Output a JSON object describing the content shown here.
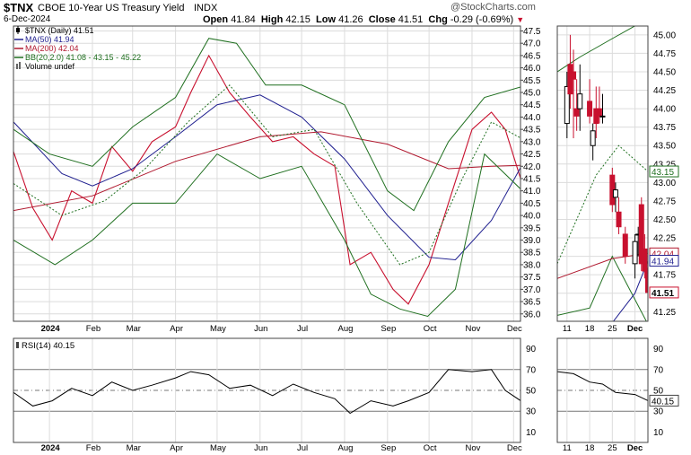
{
  "header": {
    "symbol": "$TNX",
    "name": "CBOE 10-Year US Treasury Yield",
    "exchange": "INDX",
    "watermark": "@StockCharts.com",
    "date": "6-Dec-2024",
    "ohlc": {
      "open_label": "Open",
      "open": "41.84",
      "high_label": "High",
      "high": "42.15",
      "low_label": "Low",
      "low": "41.26",
      "close_label": "Close",
      "close": "41.51",
      "chg_label": "Chg",
      "chg": "-0.29 (-0.69%)",
      "chg_arrow": "▼"
    }
  },
  "colors": {
    "ma50": "#1f1f8f",
    "ma200": "#b0182e",
    "bb": "#1f6f1f",
    "candle_down": "#c8102e",
    "candle_up": "#000000",
    "grid": "#dcdcdc",
    "rsi": "#000000"
  },
  "chart_data": [
    {
      "type": "line",
      "id": "price-main",
      "title": "$TNX CBOE 10-Year US Treasury Yield INDX",
      "legend": [
        {
          "label": "$TNX (Daily) 41.51",
          "swatch": "candle"
        },
        {
          "label": "MA(50) 41.94",
          "swatch": "ma50"
        },
        {
          "label": "MA(200) 42.04",
          "swatch": "ma200"
        },
        {
          "label": "BB(20,2.0) 41.08 - 43.15 - 45.22",
          "swatch": "bb"
        },
        {
          "label": "Volume undef",
          "swatch": "volume"
        }
      ],
      "legend_placement": "top-left",
      "y_axis_side": "right",
      "ylim": [
        35.7,
        47.7
      ],
      "y_ticks": [
        "47.5",
        "47.0",
        "46.5",
        "46.0",
        "45.5",
        "45.0",
        "44.5",
        "44.0",
        "43.5",
        "43.0",
        "42.5",
        "42.0",
        "41.5",
        "41.0",
        "40.5",
        "40.0",
        "39.5",
        "39.0",
        "38.5",
        "38.0",
        "37.5",
        "37.0",
        "36.5",
        "36.0"
      ],
      "x_tick_labels": [
        "2024",
        "Feb",
        "Mar",
        "Apr",
        "May",
        "Jun",
        "Jul",
        "Aug",
        "Sep",
        "Oct",
        "Nov",
        "Dec"
      ],
      "x_tick_months": [
        "2024-01",
        "2024-02",
        "2024-03",
        "2024-04",
        "2024-05",
        "2024-06",
        "2024-07",
        "2024-08",
        "2024-09",
        "2024-10",
        "2024-11",
        "2024-12"
      ],
      "x_range": [
        "2023-12-06",
        "2024-12-06"
      ],
      "series": [
        {
          "name": "$TNX (Daily)",
          "kind": "close",
          "x": [
            "2023-12-06",
            "2023-12-20",
            "2024-01-03",
            "2024-01-17",
            "2024-02-01",
            "2024-02-15",
            "2024-03-01",
            "2024-03-15",
            "2024-04-01",
            "2024-04-12",
            "2024-04-25",
            "2024-05-10",
            "2024-05-25",
            "2024-06-10",
            "2024-06-25",
            "2024-07-10",
            "2024-07-25",
            "2024-08-05",
            "2024-08-20",
            "2024-09-05",
            "2024-09-16",
            "2024-10-01",
            "2024-10-15",
            "2024-11-01",
            "2024-11-15",
            "2024-11-25",
            "2024-12-06"
          ],
          "values": [
            42.6,
            40.3,
            39.0,
            41.0,
            40.5,
            42.8,
            41.8,
            43.0,
            43.6,
            45.0,
            46.5,
            45.0,
            44.0,
            43.0,
            43.2,
            42.5,
            42.0,
            38.0,
            38.5,
            37.0,
            36.4,
            38.0,
            40.5,
            43.5,
            44.2,
            43.5,
            41.51
          ]
        },
        {
          "name": "MA(50)",
          "kind": "ma50",
          "x": [
            "2023-12-06",
            "2024-01-10",
            "2024-02-01",
            "2024-03-01",
            "2024-04-01",
            "2024-05-01",
            "2024-06-01",
            "2024-07-01",
            "2024-08-01",
            "2024-09-01",
            "2024-10-01",
            "2024-10-20",
            "2024-11-15",
            "2024-12-06"
          ],
          "values": [
            43.8,
            41.7,
            41.2,
            41.9,
            43.2,
            44.5,
            44.9,
            44.0,
            42.3,
            40.0,
            38.3,
            38.2,
            39.8,
            41.94
          ]
        },
        {
          "name": "MA(200)",
          "kind": "ma200",
          "x": [
            "2023-12-06",
            "2024-02-01",
            "2024-04-01",
            "2024-06-01",
            "2024-07-15",
            "2024-09-01",
            "2024-10-15",
            "2024-11-15",
            "2024-12-06"
          ],
          "values": [
            40.2,
            40.8,
            42.2,
            43.2,
            43.4,
            42.9,
            41.9,
            42.0,
            42.04
          ]
        },
        {
          "name": "BB upper",
          "kind": "bb",
          "x": [
            "2023-12-06",
            "2024-01-01",
            "2024-02-01",
            "2024-03-01",
            "2024-04-01",
            "2024-04-25",
            "2024-05-15",
            "2024-06-05",
            "2024-07-01",
            "2024-08-01",
            "2024-09-01",
            "2024-09-20",
            "2024-10-15",
            "2024-11-10",
            "2024-12-06"
          ],
          "values": [
            43.5,
            42.5,
            42.0,
            43.6,
            44.8,
            47.2,
            47.0,
            45.3,
            45.3,
            44.5,
            41.0,
            40.2,
            43.0,
            44.8,
            45.22
          ]
        },
        {
          "name": "BB lower",
          "kind": "bb",
          "x": [
            "2023-12-06",
            "2024-01-05",
            "2024-02-01",
            "2024-03-01",
            "2024-04-01",
            "2024-05-01",
            "2024-06-01",
            "2024-07-01",
            "2024-08-01",
            "2024-08-20",
            "2024-09-10",
            "2024-09-30",
            "2024-10-20",
            "2024-11-10",
            "2024-12-06"
          ],
          "values": [
            39.0,
            38.0,
            39.0,
            40.5,
            40.5,
            42.5,
            41.5,
            42.0,
            39.0,
            36.8,
            36.2,
            35.9,
            37.0,
            42.5,
            41.08
          ]
        },
        {
          "name": "BB middle",
          "kind": "bb-mid",
          "x": [
            "2023-12-06",
            "2024-01-10",
            "2024-02-10",
            "2024-03-10",
            "2024-04-10",
            "2024-05-10",
            "2024-06-10",
            "2024-07-10",
            "2024-08-10",
            "2024-09-10",
            "2024-10-01",
            "2024-10-25",
            "2024-11-15",
            "2024-12-06"
          ],
          "values": [
            41.3,
            40.0,
            40.6,
            41.9,
            43.8,
            45.3,
            43.2,
            43.5,
            40.5,
            38.0,
            38.5,
            41.5,
            43.8,
            43.15
          ]
        }
      ]
    },
    {
      "type": "line",
      "id": "price-inset",
      "y_axis_side": "right",
      "ylim": [
        41.12,
        45.12
      ],
      "y_ticks": [
        "45.00",
        "44.75",
        "44.50",
        "44.25",
        "44.00",
        "43.75",
        "43.50",
        "43.25",
        "43.00",
        "42.75",
        "42.50",
        "42.25",
        "42.00",
        "41.75",
        "41.50",
        "41.25"
      ],
      "x_tick_labels": [
        "11",
        "18",
        "25",
        "Dec"
      ],
      "x_range": [
        "2024-11-08",
        "2024-12-06"
      ],
      "value_flags": [
        {
          "label": "43.15",
          "value": 43.15,
          "kind": "bb"
        },
        {
          "label": "42.04",
          "value": 42.04,
          "kind": "ma200"
        },
        {
          "label": "41.94",
          "value": 41.94,
          "kind": "ma50"
        },
        {
          "label": "41.51",
          "value": 41.51,
          "kind": "close"
        }
      ],
      "candles": [
        {
          "date": "2024-11-11",
          "open": 43.8,
          "high": 44.5,
          "low": 43.6,
          "close": 44.3
        },
        {
          "date": "2024-11-12",
          "open": 44.6,
          "high": 45.0,
          "low": 44.0,
          "close": 44.2
        },
        {
          "date": "2024-11-13",
          "open": 44.5,
          "high": 44.8,
          "low": 43.6,
          "close": 44.4
        },
        {
          "date": "2024-11-14",
          "open": 44.0,
          "high": 44.4,
          "low": 43.7,
          "close": 43.9
        },
        {
          "date": "2024-11-15",
          "open": 44.0,
          "high": 44.6,
          "low": 43.7,
          "close": 44.2
        },
        {
          "date": "2024-11-18",
          "open": 44.1,
          "high": 44.4,
          "low": 43.8,
          "close": 43.9
        },
        {
          "date": "2024-11-19",
          "open": 43.5,
          "high": 43.8,
          "low": 43.3,
          "close": 43.7
        },
        {
          "date": "2024-11-20",
          "open": 44.0,
          "high": 44.3,
          "low": 43.6,
          "close": 43.8
        },
        {
          "date": "2024-11-21",
          "open": 44.0,
          "high": 44.3,
          "low": 43.8,
          "close": 43.9
        },
        {
          "date": "2024-11-22",
          "open": 43.9,
          "high": 44.2,
          "low": 43.8,
          "close": 43.9
        },
        {
          "date": "2024-11-25",
          "open": 43.1,
          "high": 43.2,
          "low": 42.6,
          "close": 42.7
        },
        {
          "date": "2024-11-26",
          "open": 42.8,
          "high": 43.0,
          "low": 42.6,
          "close": 42.9
        },
        {
          "date": "2024-11-27",
          "open": 42.6,
          "high": 42.8,
          "low": 42.3,
          "close": 42.4
        },
        {
          "date": "2024-11-29",
          "open": 42.3,
          "high": 42.4,
          "low": 41.9,
          "close": 42.0
        },
        {
          "date": "2024-12-02",
          "open": 41.9,
          "high": 42.3,
          "low": 41.7,
          "close": 42.2
        },
        {
          "date": "2024-12-03",
          "open": 42.3,
          "high": 42.4,
          "low": 42.0,
          "close": 42.3
        },
        {
          "date": "2024-12-04",
          "open": 42.7,
          "high": 42.8,
          "low": 41.8,
          "close": 41.9
        },
        {
          "date": "2024-12-05",
          "open": 42.1,
          "high": 42.3,
          "low": 41.7,
          "close": 41.8
        },
        {
          "date": "2024-12-06",
          "open": 41.84,
          "high": 42.15,
          "low": 41.26,
          "close": 41.51
        }
      ],
      "series": [
        {
          "name": "BB upper",
          "kind": "bb",
          "x": [
            "2024-11-08",
            "2024-11-15",
            "2024-11-25",
            "2024-12-06"
          ],
          "values": [
            44.5,
            44.7,
            44.95,
            45.22
          ]
        },
        {
          "name": "BB middle",
          "kind": "bb-mid",
          "x": [
            "2024-11-08",
            "2024-11-20",
            "2024-11-27",
            "2024-12-06"
          ],
          "values": [
            41.9,
            43.1,
            43.5,
            43.15
          ]
        },
        {
          "name": "BB lower",
          "kind": "bb",
          "x": [
            "2024-11-08",
            "2024-11-18",
            "2024-11-25",
            "2024-12-06"
          ],
          "values": [
            41.2,
            41.3,
            42.0,
            41.08
          ]
        },
        {
          "name": "MA(200)",
          "kind": "ma200",
          "x": [
            "2024-11-08",
            "2024-11-25",
            "2024-12-06"
          ],
          "values": [
            41.7,
            41.97,
            42.04
          ]
        },
        {
          "name": "MA(50)",
          "kind": "ma50",
          "x": [
            "2024-11-25",
            "2024-12-02",
            "2024-12-06"
          ],
          "values": [
            41.1,
            41.5,
            41.94
          ]
        }
      ]
    },
    {
      "type": "line",
      "id": "rsi-main",
      "legend": [
        {
          "label": "RSI(14) 40.15"
        }
      ],
      "ylim": [
        0,
        100
      ],
      "y_ticks": [
        "90",
        "70",
        "50",
        "30",
        "10"
      ],
      "reference_lines": [
        70,
        50,
        30
      ],
      "x_tick_labels": [
        "2024",
        "Feb",
        "Mar",
        "Apr",
        "May",
        "Jun",
        "Jul",
        "Aug",
        "Sep",
        "Oct",
        "Nov",
        "Dec"
      ],
      "x_range": [
        "2023-12-06",
        "2024-12-06"
      ],
      "series": [
        {
          "name": "RSI(14)",
          "x": [
            "2023-12-06",
            "2023-12-20",
            "2024-01-03",
            "2024-01-17",
            "2024-02-01",
            "2024-02-15",
            "2024-03-01",
            "2024-03-15",
            "2024-04-01",
            "2024-04-12",
            "2024-04-25",
            "2024-05-10",
            "2024-05-25",
            "2024-06-10",
            "2024-06-25",
            "2024-07-10",
            "2024-07-25",
            "2024-08-05",
            "2024-08-20",
            "2024-09-05",
            "2024-09-16",
            "2024-10-01",
            "2024-10-15",
            "2024-11-01",
            "2024-11-15",
            "2024-11-25",
            "2024-12-06"
          ],
          "values": [
            48,
            35,
            40,
            52,
            45,
            58,
            50,
            55,
            62,
            68,
            65,
            52,
            55,
            45,
            56,
            48,
            42,
            28,
            40,
            35,
            40,
            48,
            70,
            68,
            70,
            50,
            40.15
          ]
        }
      ]
    },
    {
      "type": "line",
      "id": "rsi-inset",
      "ylim": [
        0,
        100
      ],
      "y_ticks": [
        "90",
        "70",
        "50",
        "30",
        "10"
      ],
      "value_flags": [
        {
          "label": "40.15",
          "value": 40.15
        }
      ],
      "x_tick_labels": [
        "11",
        "18",
        "25",
        "Dec"
      ],
      "x_range": [
        "2024-11-08",
        "2024-12-06"
      ],
      "series": [
        {
          "name": "RSI(14)",
          "x": [
            "2024-11-08",
            "2024-11-13",
            "2024-11-18",
            "2024-11-22",
            "2024-11-26",
            "2024-12-02",
            "2024-12-06"
          ],
          "values": [
            68,
            66,
            58,
            56,
            48,
            46,
            40.15
          ]
        }
      ]
    }
  ]
}
